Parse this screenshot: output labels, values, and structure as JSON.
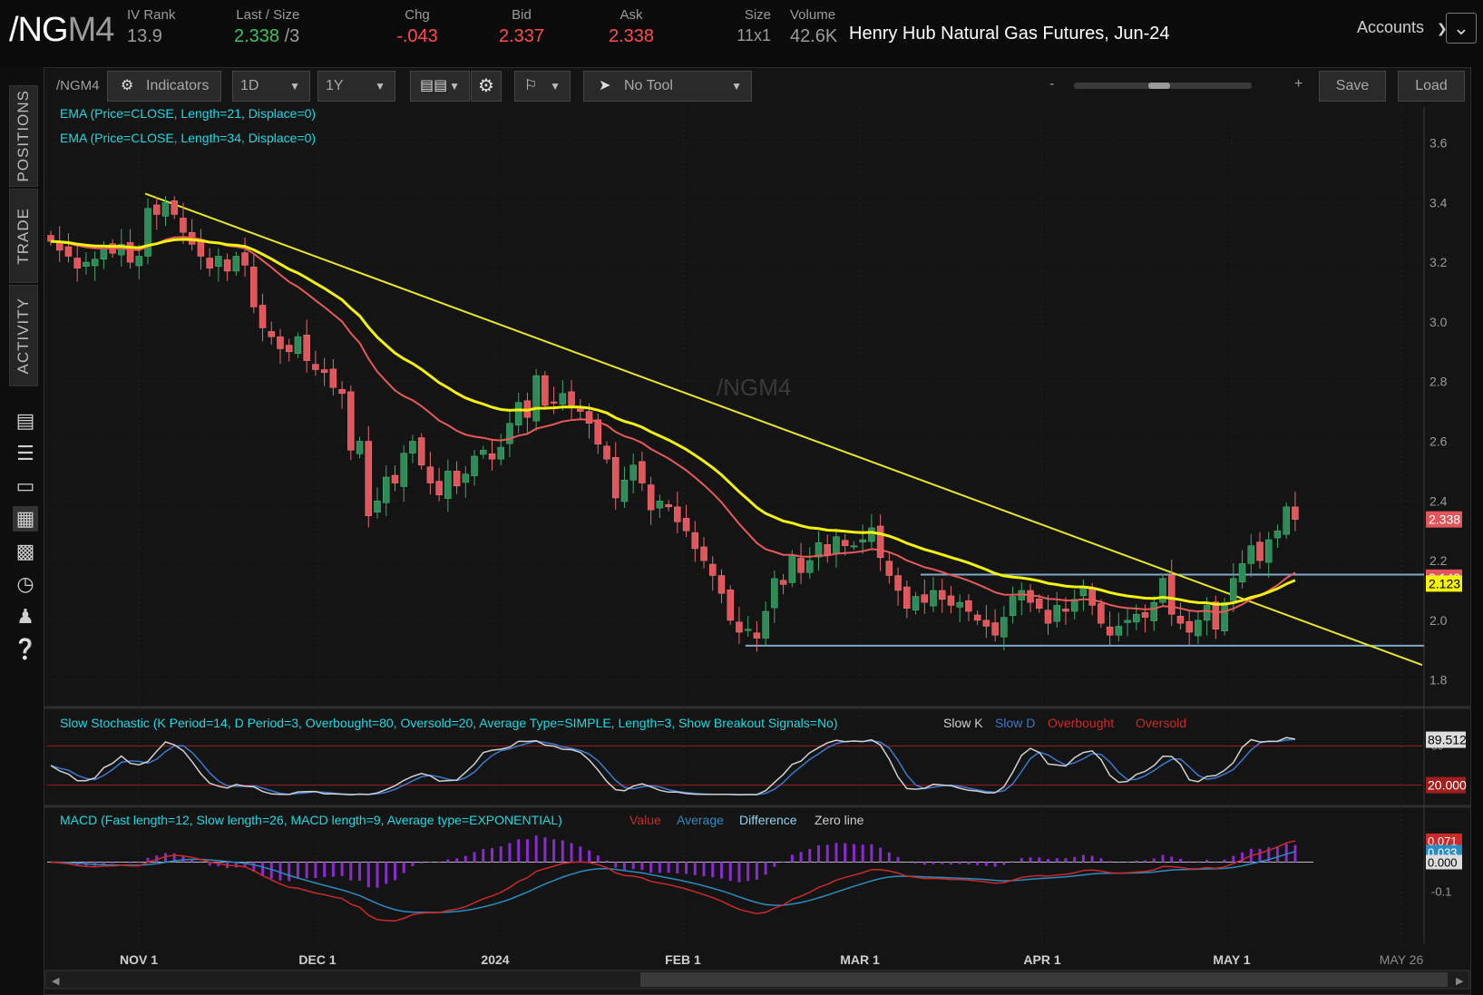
{
  "header": {
    "symbol_main": "/NG",
    "symbol_suffix": "M4",
    "iv_rank": {
      "label": "IV Rank",
      "value": "13.9"
    },
    "last_size": {
      "label": "Last / Size",
      "last": "2.338",
      "size": " /3"
    },
    "chg": {
      "label": "Chg",
      "value": "-.043"
    },
    "bid": {
      "label": "Bid",
      "value": "2.337"
    },
    "ask": {
      "label": "Ask",
      "value": "2.338"
    },
    "size": {
      "label": "Size",
      "value": "11x1"
    },
    "volume": {
      "label": "Volume",
      "value": "42.6K"
    },
    "description": "Henry Hub Natural Gas Futures, Jun-24",
    "accounts_label": "Accounts"
  },
  "left_tabs": [
    "POSITIONS",
    "TRADE",
    "ACTIVITY"
  ],
  "left_icons": [
    "document-icon",
    "list-icon",
    "tv-icon",
    "chart-grid-icon",
    "layout-icon",
    "gauge-icon",
    "people-icon",
    "help-icon"
  ],
  "toolbar": {
    "symbol": "/NGM4",
    "indicators": "Indicators",
    "interval": "1D",
    "range": "1Y",
    "tool": "No Tool",
    "zoom_minus": "-",
    "zoom_plus": "+",
    "save": "Save",
    "load": "Load"
  },
  "studies": {
    "ema21": "EMA (Price=CLOSE, Length=21, Displace=0)",
    "ema34": "EMA (Price=CLOSE, Length=34, Displace=0)",
    "watermark": "/NGM4",
    "stoch": "Slow Stochastic (K Period=14, D Period=3, Overbought=80, Oversold=20, Average Type=SIMPLE, Length=3, Show Breakout Signals=No)",
    "stoch_legend": [
      "Slow K",
      "Slow D",
      "Overbought",
      "Oversold"
    ],
    "macd": "MACD (Fast length=12, Slow length=26, MACD length=9, Average type=EXPONENTIAL)",
    "macd_legend": [
      "Value",
      "Average",
      "Difference",
      "Zero line"
    ]
  },
  "colors": {
    "up": "#2e8b57",
    "down": "#e2565b",
    "ema21": "#e85a5a",
    "ema34": "#f2f20a",
    "trendline": "#e6e62a",
    "hline": "#7fa8c9",
    "stoch_k": "#d0d0d0",
    "stoch_d": "#3a7ad0",
    "macd_value": "#cc2a2a",
    "macd_avg": "#2a8cc0",
    "macd_diff": "#8a2ad0"
  },
  "chart_data": [
    {
      "type": "candlestick",
      "x_ticks": [
        "NOV 1",
        "DEC 1",
        "2024",
        "FEB 1",
        "MAR 1",
        "APR 1",
        "MAY 1",
        "MAY 26"
      ],
      "y_ticks": [
        "3.6",
        "3.4",
        "3.2",
        "3.0",
        "2.8",
        "2.6",
        "2.4",
        "2.2",
        "2.0",
        "1.8"
      ],
      "ylim": [
        1.72,
        3.72
      ],
      "price_labels": [
        {
          "text": "2.338",
          "value": 2.338
        },
        {
          "text": "2.143",
          "value": 2.143
        },
        {
          "text": "2.123",
          "value": 2.123
        }
      ],
      "closes": [
        3.27,
        3.24,
        3.22,
        3.18,
        3.2,
        3.21,
        3.25,
        3.23,
        3.26,
        3.2,
        3.22,
        3.38,
        3.36,
        3.4,
        3.36,
        3.3,
        3.26,
        3.22,
        3.18,
        3.22,
        3.17,
        3.22,
        3.19,
        3.05,
        2.98,
        2.95,
        2.91,
        2.9,
        2.95,
        2.87,
        2.84,
        2.83,
        2.78,
        2.76,
        2.57,
        2.6,
        2.35,
        2.4,
        2.48,
        2.46,
        2.56,
        2.6,
        2.52,
        2.46,
        2.42,
        2.5,
        2.45,
        2.49,
        2.55,
        2.57,
        2.54,
        2.58,
        2.66,
        2.73,
        2.68,
        2.82,
        2.72,
        2.73,
        2.76,
        2.72,
        2.7,
        2.66,
        2.59,
        2.54,
        2.41,
        2.47,
        2.52,
        2.46,
        2.37,
        2.4,
        2.38,
        2.33,
        2.3,
        2.24,
        2.2,
        2.15,
        2.09,
        2.0,
        1.96,
        1.97,
        1.94,
        2.03,
        2.14,
        2.12,
        2.22,
        2.16,
        2.2,
        2.26,
        2.22,
        2.28,
        2.25,
        2.25,
        2.27,
        2.31,
        2.21,
        2.15,
        2.1,
        2.04,
        2.08,
        2.06,
        2.1,
        2.07,
        2.05,
        2.06,
        2.03,
        2.0,
        1.98,
        1.95,
        2.01,
        2.08,
        2.1,
        2.06,
        2.04,
        1.99,
        2.05,
        2.03,
        2.07,
        2.11,
        2.05,
        1.99,
        1.95,
        1.98,
        2.0,
        2.02,
        2.01,
        2.06,
        2.14,
        2.02,
        1.99,
        1.96,
        2.0,
        2.05,
        1.97,
        2.06,
        2.14,
        2.19,
        2.25,
        2.2,
        2.27,
        2.3,
        2.38,
        2.338
      ]
    },
    {
      "type": "line",
      "y_ticks": [
        "80",
        "20"
      ],
      "ylim": [
        0,
        100
      ],
      "value_labels": [
        {
          "text": "89.512",
          "value": 89.512
        },
        {
          "text": "20.000",
          "value": 20
        }
      ]
    },
    {
      "type": "line",
      "y_ticks": [
        "-0.1"
      ],
      "ylim": [
        -0.27,
        0.11
      ],
      "value_labels": [
        {
          "text": "0.071",
          "value": 0.071
        },
        {
          "text": "0.033",
          "value": 0.033
        },
        {
          "text": "0.000",
          "value": 0.0
        }
      ]
    }
  ]
}
